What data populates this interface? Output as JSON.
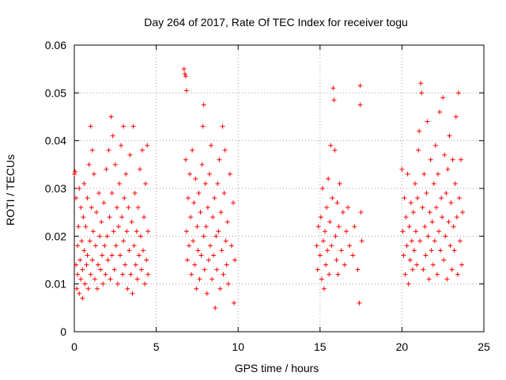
{
  "chart_data": {
    "type": "scatter",
    "title": "Day 264 of 2017, Rate Of TEC Index for receiver togu",
    "xlabel": "GPS time / hours",
    "ylabel": "ROTI / TECUs",
    "xlim": [
      0,
      25
    ],
    "ylim": [
      0,
      0.06
    ],
    "x_ticks": [
      0,
      5,
      10,
      15,
      20,
      25
    ],
    "y_ticks": [
      0,
      0.01,
      0.02,
      0.03,
      0.04,
      0.05,
      0.06
    ],
    "x_tick_labels": [
      "0",
      "5",
      "10",
      "15",
      "20",
      "25"
    ],
    "y_tick_labels": [
      "0",
      "0.01",
      "0.02",
      "0.03",
      "0.04",
      "0.05",
      "0.06"
    ],
    "grid": true,
    "marker": "plus",
    "color": "#ff0000",
    "series": [
      {
        "points": [
          [
            0.0,
            0.033
          ],
          [
            0.05,
            0.0335
          ],
          [
            0.1,
            0.028
          ],
          [
            0.1,
            0.014
          ],
          [
            0.15,
            0.009
          ],
          [
            0.2,
            0.012
          ],
          [
            0.2,
            0.018
          ],
          [
            0.25,
            0.022
          ],
          [
            0.3,
            0.03
          ],
          [
            0.3,
            0.008
          ],
          [
            0.35,
            0.015
          ],
          [
            0.4,
            0.011
          ],
          [
            0.4,
            0.026
          ],
          [
            0.45,
            0.019
          ],
          [
            0.5,
            0.007
          ],
          [
            0.5,
            0.013
          ],
          [
            0.55,
            0.024
          ],
          [
            0.6,
            0.017
          ],
          [
            0.6,
            0.031
          ],
          [
            0.65,
            0.01
          ],
          [
            0.7,
            0.022
          ],
          [
            0.75,
            0.014
          ],
          [
            0.8,
            0.028
          ],
          [
            0.8,
            0.016
          ],
          [
            0.85,
            0.009
          ],
          [
            0.9,
            0.035
          ],
          [
            0.95,
            0.019
          ],
          [
            1.0,
            0.043
          ],
          [
            1.0,
            0.012
          ],
          [
            1.05,
            0.026
          ],
          [
            1.1,
            0.038
          ],
          [
            1.1,
            0.015
          ],
          [
            1.15,
            0.021
          ],
          [
            1.2,
            0.033
          ],
          [
            1.25,
            0.011
          ],
          [
            1.3,
            0.018
          ],
          [
            1.35,
            0.025
          ],
          [
            1.4,
            0.009
          ],
          [
            1.45,
            0.014
          ],
          [
            1.5,
            0.029
          ],
          [
            1.55,
            0.02
          ],
          [
            1.6,
            0.013
          ],
          [
            1.65,
            0.023
          ],
          [
            1.7,
            0.016
          ],
          [
            1.75,
            0.01
          ],
          [
            1.8,
            0.027
          ],
          [
            1.85,
            0.018
          ],
          [
            1.9,
            0.012
          ],
          [
            1.95,
            0.034
          ],
          [
            2.0,
            0.02
          ],
          [
            2.05,
            0.015
          ],
          [
            2.1,
            0.038
          ],
          [
            2.15,
            0.024
          ],
          [
            2.2,
            0.011
          ],
          [
            2.25,
            0.045
          ],
          [
            2.3,
            0.029
          ],
          [
            2.3,
            0.016
          ],
          [
            2.35,
            0.041
          ],
          [
            2.4,
            0.021
          ],
          [
            2.45,
            0.013
          ],
          [
            2.5,
            0.035
          ],
          [
            2.55,
            0.018
          ],
          [
            2.6,
            0.026
          ],
          [
            2.65,
            0.01
          ],
          [
            2.7,
            0.022
          ],
          [
            2.75,
            0.031
          ],
          [
            2.8,
            0.016
          ],
          [
            2.85,
            0.039
          ],
          [
            2.9,
            0.024
          ],
          [
            2.95,
            0.012
          ],
          [
            3.0,
            0.043
          ],
          [
            3.0,
            0.019
          ],
          [
            3.05,
            0.028
          ],
          [
            3.1,
            0.014
          ],
          [
            3.15,
            0.033
          ],
          [
            3.2,
            0.021
          ],
          [
            3.25,
            0.009
          ],
          [
            3.3,
            0.026
          ],
          [
            3.35,
            0.017
          ],
          [
            3.4,
            0.037
          ],
          [
            3.45,
            0.012
          ],
          [
            3.5,
            0.023
          ],
          [
            3.55,
            0.008
          ],
          [
            3.6,
            0.043
          ],
          [
            3.65,
            0.018
          ],
          [
            3.7,
            0.029
          ],
          [
            3.75,
            0.014
          ],
          [
            3.8,
            0.021
          ],
          [
            3.85,
            0.011
          ],
          [
            3.9,
            0.026
          ],
          [
            3.95,
            0.016
          ],
          [
            4.0,
            0.034
          ],
          [
            4.05,
            0.02
          ],
          [
            4.1,
            0.013
          ],
          [
            4.15,
            0.038
          ],
          [
            4.2,
            0.017
          ],
          [
            4.25,
            0.024
          ],
          [
            4.3,
            0.01
          ],
          [
            4.35,
            0.031
          ],
          [
            4.4,
            0.015
          ],
          [
            4.45,
            0.039
          ],
          [
            4.5,
            0.021
          ],
          [
            4.5,
            0.012
          ],
          [
            6.7,
            0.055
          ],
          [
            6.75,
            0.054
          ],
          [
            6.8,
            0.0535
          ],
          [
            6.85,
            0.0505
          ],
          [
            6.8,
            0.036
          ],
          [
            6.85,
            0.021
          ],
          [
            6.9,
            0.015
          ],
          [
            6.95,
            0.028
          ],
          [
            7.0,
            0.018
          ],
          [
            7.05,
            0.033
          ],
          [
            7.1,
            0.024
          ],
          [
            7.15,
            0.012
          ],
          [
            7.2,
            0.038
          ],
          [
            7.25,
            0.019
          ],
          [
            7.3,
            0.027
          ],
          [
            7.35,
            0.014
          ],
          [
            7.4,
            0.032
          ],
          [
            7.45,
            0.009
          ],
          [
            7.5,
            0.022
          ],
          [
            7.55,
            0.017
          ],
          [
            7.6,
            0.029
          ],
          [
            7.65,
            0.011
          ],
          [
            7.7,
            0.025
          ],
          [
            7.75,
            0.016
          ],
          [
            7.8,
            0.035
          ],
          [
            7.85,
            0.043
          ],
          [
            7.9,
            0.0475
          ],
          [
            7.9,
            0.02
          ],
          [
            7.95,
            0.013
          ],
          [
            8.0,
            0.031
          ],
          [
            8.05,
            0.022
          ],
          [
            8.1,
            0.008
          ],
          [
            8.15,
            0.026
          ],
          [
            8.2,
            0.015
          ],
          [
            8.25,
            0.033
          ],
          [
            8.3,
            0.018
          ],
          [
            8.35,
            0.039
          ],
          [
            8.4,
            0.011
          ],
          [
            8.45,
            0.024
          ],
          [
            8.5,
            0.016
          ],
          [
            8.55,
            0.028
          ],
          [
            8.6,
            0.005
          ],
          [
            8.65,
            0.02
          ],
          [
            8.7,
            0.013
          ],
          [
            8.75,
            0.031
          ],
          [
            8.8,
            0.021
          ],
          [
            8.85,
            0.036
          ],
          [
            8.9,
            0.009
          ],
          [
            8.95,
            0.025
          ],
          [
            9.0,
            0.017
          ],
          [
            9.05,
            0.043
          ],
          [
            9.1,
            0.012
          ],
          [
            9.15,
            0.029
          ],
          [
            9.2,
            0.038
          ],
          [
            9.25,
            0.019
          ],
          [
            9.3,
            0.014
          ],
          [
            9.35,
            0.023
          ],
          [
            9.4,
            0.01
          ],
          [
            9.5,
            0.033
          ],
          [
            9.6,
            0.018
          ],
          [
            9.7,
            0.027
          ],
          [
            9.75,
            0.006
          ],
          [
            9.8,
            0.015
          ],
          [
            14.8,
            0.018
          ],
          [
            14.85,
            0.013
          ],
          [
            14.9,
            0.022
          ],
          [
            15.0,
            0.016
          ],
          [
            15.05,
            0.024
          ],
          [
            15.1,
            0.011
          ],
          [
            15.15,
            0.03
          ],
          [
            15.2,
            0.019
          ],
          [
            15.25,
            0.009
          ],
          [
            15.3,
            0.021
          ],
          [
            15.35,
            0.014
          ],
          [
            15.4,
            0.026
          ],
          [
            15.45,
            0.017
          ],
          [
            15.5,
            0.032
          ],
          [
            15.55,
            0.012
          ],
          [
            15.6,
            0.023
          ],
          [
            15.65,
            0.039
          ],
          [
            15.7,
            0.018
          ],
          [
            15.75,
            0.028
          ],
          [
            15.8,
            0.051
          ],
          [
            15.85,
            0.0485
          ],
          [
            15.9,
            0.038
          ],
          [
            15.95,
            0.02
          ],
          [
            16.0,
            0.015
          ],
          [
            16.05,
            0.027
          ],
          [
            16.1,
            0.012
          ],
          [
            16.15,
            0.022
          ],
          [
            16.2,
            0.031
          ],
          [
            16.3,
            0.017
          ],
          [
            16.4,
            0.025
          ],
          [
            16.5,
            0.014
          ],
          [
            16.6,
            0.021
          ],
          [
            16.7,
            0.026
          ],
          [
            16.8,
            0.018
          ],
          [
            17.0,
            0.016
          ],
          [
            17.1,
            0.022
          ],
          [
            17.3,
            0.013
          ],
          [
            17.4,
            0.006
          ],
          [
            17.45,
            0.0515
          ],
          [
            17.45,
            0.0475
          ],
          [
            17.5,
            0.025
          ],
          [
            17.55,
            0.019
          ],
          [
            20.0,
            0.034
          ],
          [
            20.05,
            0.021
          ],
          [
            20.1,
            0.016
          ],
          [
            20.15,
            0.028
          ],
          [
            20.2,
            0.012
          ],
          [
            20.25,
            0.024
          ],
          [
            20.3,
            0.018
          ],
          [
            20.35,
            0.033
          ],
          [
            20.4,
            0.01
          ],
          [
            20.45,
            0.022
          ],
          [
            20.5,
            0.015
          ],
          [
            20.55,
            0.027
          ],
          [
            20.6,
            0.019
          ],
          [
            20.65,
            0.013
          ],
          [
            20.7,
            0.025
          ],
          [
            20.75,
            0.017
          ],
          [
            20.8,
            0.031
          ],
          [
            20.85,
            0.021
          ],
          [
            20.9,
            0.014
          ],
          [
            20.95,
            0.028
          ],
          [
            21.0,
            0.038
          ],
          [
            21.05,
            0.042
          ],
          [
            21.1,
            0.019
          ],
          [
            21.15,
            0.052
          ],
          [
            21.2,
            0.05
          ],
          [
            21.25,
            0.026
          ],
          [
            21.3,
            0.013
          ],
          [
            21.35,
            0.033
          ],
          [
            21.4,
            0.022
          ],
          [
            21.45,
            0.016
          ],
          [
            21.5,
            0.029
          ],
          [
            21.55,
            0.044
          ],
          [
            21.6,
            0.02
          ],
          [
            21.65,
            0.011
          ],
          [
            21.7,
            0.025
          ],
          [
            21.75,
            0.036
          ],
          [
            21.8,
            0.017
          ],
          [
            21.85,
            0.023
          ],
          [
            21.9,
            0.014
          ],
          [
            21.95,
            0.031
          ],
          [
            22.0,
            0.019
          ],
          [
            22.05,
            0.039
          ],
          [
            22.1,
            0.026
          ],
          [
            22.15,
            0.012
          ],
          [
            22.2,
            0.033
          ],
          [
            22.25,
            0.021
          ],
          [
            22.3,
            0.046
          ],
          [
            22.35,
            0.017
          ],
          [
            22.4,
            0.028
          ],
          [
            22.45,
            0.024
          ],
          [
            22.5,
            0.049
          ],
          [
            22.55,
            0.015
          ],
          [
            22.6,
            0.037
          ],
          [
            22.65,
            0.02
          ],
          [
            22.7,
            0.029
          ],
          [
            22.75,
            0.011
          ],
          [
            22.8,
            0.034
          ],
          [
            22.85,
            0.023
          ],
          [
            22.9,
            0.041
          ],
          [
            22.95,
            0.018
          ],
          [
            23.0,
            0.027
          ],
          [
            23.05,
            0.013
          ],
          [
            23.1,
            0.036
          ],
          [
            23.15,
            0.022
          ],
          [
            23.2,
            0.017
          ],
          [
            23.25,
            0.031
          ],
          [
            23.3,
            0.045
          ],
          [
            23.35,
            0.024
          ],
          [
            23.4,
            0.012
          ],
          [
            23.45,
            0.05
          ],
          [
            23.5,
            0.028
          ],
          [
            23.55,
            0.019
          ],
          [
            23.6,
            0.036
          ],
          [
            23.65,
            0.014
          ],
          [
            23.7,
            0.025
          ]
        ]
      }
    ]
  }
}
